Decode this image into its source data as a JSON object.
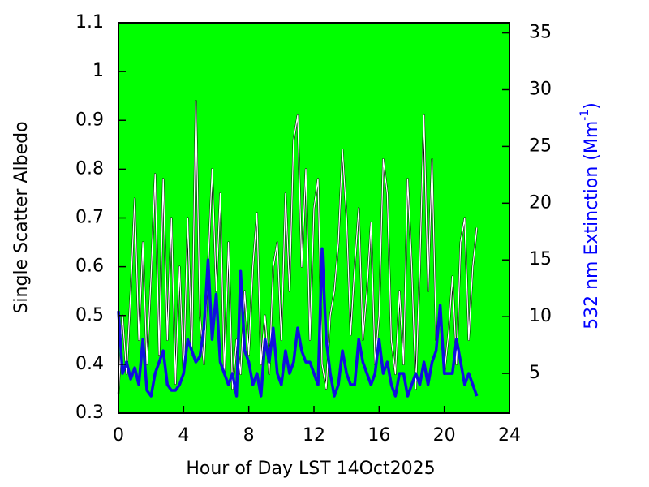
{
  "chart_data": {
    "type": "line",
    "xlabel": "Hour of Day LST 14Oct2025",
    "ylabel": "Single Scatter Albedo",
    "y2label": [
      "532 nm Extinction (Mm",
      "-1",
      ")"
    ],
    "background": "#00ff00",
    "xlim": [
      0,
      24
    ],
    "xticks": [
      0,
      4,
      8,
      12,
      16,
      20,
      24
    ],
    "ylim": [
      0.3,
      1.1
    ],
    "yticks": [
      0.3,
      0.4,
      0.5,
      0.6,
      0.7,
      0.8,
      0.9,
      1,
      1.1
    ],
    "y2lim": [
      1.5,
      35.9
    ],
    "y2ticks": [
      5,
      10,
      15,
      20,
      25,
      30,
      35
    ],
    "x": [
      0,
      0.25,
      0.5,
      0.75,
      1,
      1.25,
      1.5,
      1.75,
      2,
      2.25,
      2.5,
      2.75,
      3,
      3.25,
      3.5,
      3.75,
      4,
      4.25,
      4.5,
      4.75,
      5,
      5.25,
      5.5,
      5.75,
      6,
      6.25,
      6.5,
      6.75,
      7,
      7.25,
      7.5,
      7.75,
      8,
      8.25,
      8.5,
      8.75,
      9,
      9.25,
      9.5,
      9.75,
      10,
      10.25,
      10.5,
      10.75,
      11,
      11.25,
      11.5,
      11.75,
      12,
      12.25,
      12.5,
      12.75,
      13,
      13.25,
      13.5,
      13.75,
      14,
      14.25,
      14.5,
      14.75,
      15,
      15.25,
      15.5,
      15.75,
      16,
      16.25,
      16.5,
      16.75,
      17,
      17.25,
      17.5,
      17.75,
      18,
      18.25,
      18.5,
      18.75,
      19,
      19.25,
      19.5,
      19.75,
      20,
      20.25,
      20.5,
      20.75,
      21,
      21.25,
      21.5,
      21.75,
      22
    ],
    "series": [
      {
        "color": "#ffffff",
        "width": 1.3,
        "values": [
          0.34,
          0.5,
          0.38,
          0.55,
          0.74,
          0.45,
          0.65,
          0.4,
          0.58,
          0.79,
          0.42,
          0.78,
          0.45,
          0.7,
          0.36,
          0.6,
          0.38,
          0.7,
          0.42,
          0.94,
          0.5,
          0.4,
          0.6,
          0.8,
          0.55,
          0.75,
          0.38,
          0.65,
          0.35,
          0.45,
          0.38,
          0.55,
          0.42,
          0.6,
          0.71,
          0.4,
          0.5,
          0.38,
          0.6,
          0.65,
          0.45,
          0.75,
          0.55,
          0.86,
          0.91,
          0.6,
          0.8,
          0.45,
          0.72,
          0.78,
          0.4,
          0.35,
          0.5,
          0.55,
          0.65,
          0.84,
          0.7,
          0.46,
          0.6,
          0.72,
          0.45,
          0.55,
          0.69,
          0.4,
          0.5,
          0.82,
          0.75,
          0.45,
          0.38,
          0.55,
          0.4,
          0.78,
          0.6,
          0.35,
          0.6,
          0.91,
          0.55,
          0.82,
          0.45,
          0.5,
          0.38,
          0.46,
          0.58,
          0.4,
          0.65,
          0.7,
          0.45,
          0.6,
          0.68
        ]
      },
      {
        "color": "#1010e0",
        "width": 3.5,
        "axis": "y2",
        "values": [
          10.5,
          5,
          6,
          4.5,
          5.5,
          4,
          8,
          3.5,
          3,
          5,
          6,
          7,
          4,
          3.5,
          3.5,
          4,
          5,
          8,
          7,
          6,
          6.5,
          9,
          15,
          8,
          12,
          6,
          5,
          4,
          5,
          3,
          14,
          7,
          6,
          4,
          5,
          3,
          8,
          6,
          9,
          5,
          4,
          7,
          5,
          6,
          9,
          7,
          6,
          6,
          5,
          4,
          16,
          8,
          5,
          3,
          4,
          7,
          5,
          4,
          4,
          8,
          6,
          5,
          4,
          5,
          8,
          5,
          6,
          4,
          3,
          5,
          5,
          3,
          4,
          5,
          4,
          6,
          4,
          6,
          7,
          11,
          5,
          5,
          5,
          8,
          6,
          4,
          5,
          4,
          3
        ]
      }
    ]
  }
}
